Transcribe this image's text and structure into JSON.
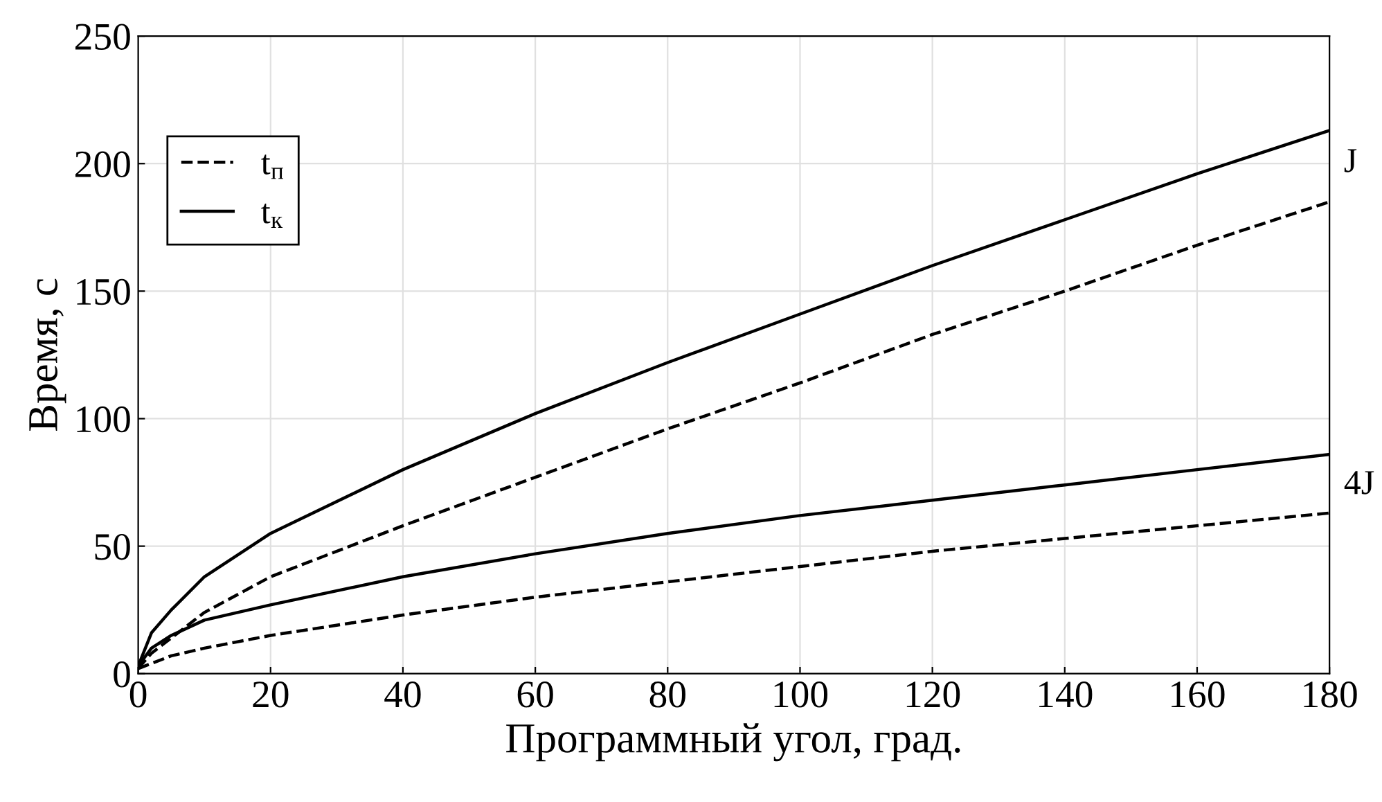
{
  "chart_data": {
    "type": "line",
    "xlabel": "Программный угол, град.",
    "ylabel": "Время, с",
    "xlim": [
      0,
      180
    ],
    "ylim": [
      0,
      250
    ],
    "xticks": [
      0,
      20,
      40,
      60,
      80,
      100,
      120,
      140,
      160,
      180
    ],
    "yticks": [
      0,
      50,
      100,
      150,
      200,
      250
    ],
    "grid": true,
    "legend": "top left",
    "marker": "none",
    "x": [
      0,
      2,
      5,
      10,
      20,
      40,
      60,
      80,
      100,
      120,
      140,
      160,
      180
    ],
    "series": [
      {
        "name": "t$_{п}$",
        "color": "#000000",
        "line_style": "dashed",
        "values": [
          2,
          8,
          14,
          24,
          38,
          58,
          77,
          96,
          114,
          133,
          150,
          168,
          185
        ]
      },
      {
        "name": "t$_{к}$",
        "color": "#000000",
        "line_style": "solid",
        "values": [
          3,
          16,
          25,
          38,
          55,
          80,
          102,
          122,
          141,
          160,
          178,
          196,
          213
        ]
      },
      {
        "color": "#000000",
        "line_style": "dashed",
        "values": [
          2,
          4,
          7,
          10,
          15,
          23,
          30,
          36,
          42,
          48,
          53,
          58,
          63
        ]
      },
      {
        "color": "#000000",
        "line_style": "solid",
        "values": [
          3,
          10,
          15,
          21,
          27,
          38,
          47,
          55,
          62,
          68,
          74,
          80,
          86
        ]
      }
    ],
    "annotations": [
      "J",
      "4J"
    ]
  }
}
